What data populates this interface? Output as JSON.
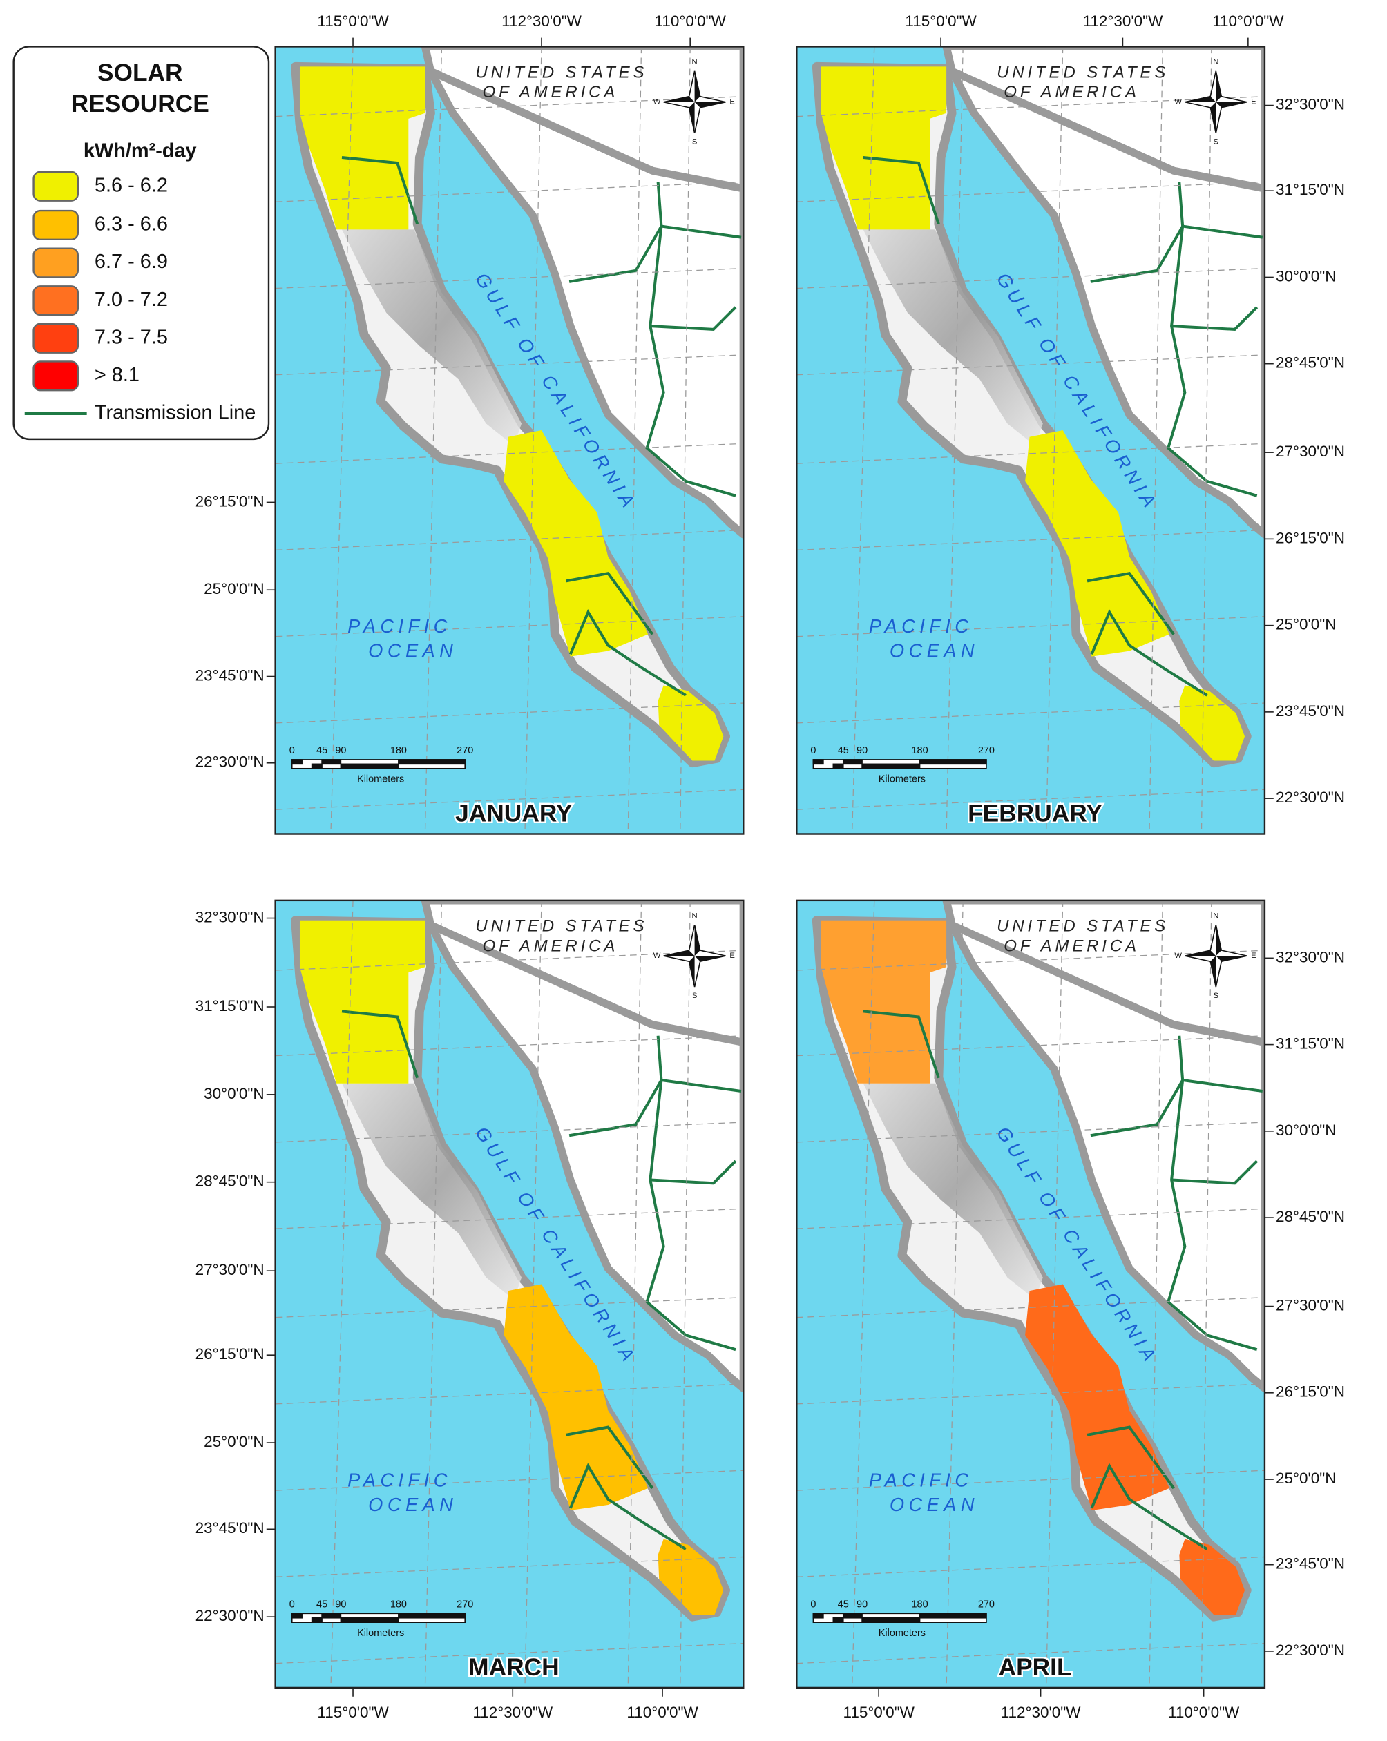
{
  "legend": {
    "title": [
      "SOLAR",
      "RESOURCE"
    ],
    "unit": "kWh/m²-day",
    "items": [
      {
        "label": "5.6 - 6.2",
        "color": "#f0f000"
      },
      {
        "label": "6.3 - 6.6",
        "color": "#ffc000"
      },
      {
        "label": "6.7 - 6.9",
        "color": "#ffa020"
      },
      {
        "label": "7.0 - 7.2",
        "color": "#ff7020"
      },
      {
        "label": "7.3 - 7.5",
        "color": "#ff4010"
      },
      {
        "label": ">  8.1",
        "color": "#ff0000"
      }
    ],
    "line": {
      "label": "Transmission Line",
      "color": "#1f7a45"
    }
  },
  "map_labels": {
    "country": [
      "UNITED STATES",
      "OF AMERICA"
    ],
    "gulf": "GULF OF CALIFORNIA",
    "ocean": [
      "PACIFIC",
      "OCEAN"
    ],
    "compass": [
      "N",
      "S",
      "E",
      "W"
    ]
  },
  "scale_bar": {
    "ticks": [
      "0",
      "45",
      "90",
      "180",
      "270"
    ],
    "unit": "Kilometers"
  },
  "panels": [
    {
      "month": "JANUARY",
      "longitudes": [
        "115°0'0\"W",
        "112°30'0\"W",
        "110°0'0\"W"
      ],
      "latitudes": [
        "26°15'0\"N",
        "25°0'0\"N",
        "23°45'0\"N",
        "22°30'0\"N"
      ],
      "colors": {
        "north": "#f0f000",
        "south": "#f0f000",
        "cape": "#f0f000"
      }
    },
    {
      "month": "FEBRUARY",
      "longitudes": [
        "115°0'0\"W",
        "112°30'0\"W",
        "110°0'0\"W"
      ],
      "latitudes": [
        "32°30'0\"N",
        "31°15'0\"N",
        "30°0'0\"N",
        "28°45'0\"N",
        "27°30'0\"N",
        "26°15'0\"N",
        "25°0'0\"N",
        "23°45'0\"N",
        "22°30'0\"N"
      ],
      "colors": {
        "north": "#f0f000",
        "south": "#f0f000",
        "cape": "#f0f000"
      }
    },
    {
      "month": "MARCH",
      "longitudes": [
        "115°0'0\"W",
        "112°30'0\"W",
        "110°0'0\"W"
      ],
      "latitudes": [
        "32°30'0\"N",
        "31°15'0\"N",
        "30°0'0\"N",
        "28°45'0\"N",
        "27°30'0\"N",
        "26°15'0\"N",
        "25°0'0\"N",
        "23°45'0\"N",
        "22°30'0\"N"
      ],
      "colors": {
        "north": "#f0f000",
        "south": "#ffc000",
        "cape": "#ffc000"
      }
    },
    {
      "month": "APRIL",
      "longitudes": [
        "115°0'0\"W",
        "112°30'0\"W",
        "110°0'0\"W"
      ],
      "latitudes": [
        "32°30'0\"N",
        "31°15'0\"N",
        "30°0'0\"N",
        "28°45'0\"N",
        "27°30'0\"N",
        "26°15'0\"N",
        "25°0'0\"N",
        "23°45'0\"N",
        "22°30'0\"N"
      ],
      "colors": {
        "north": "#ffa030",
        "south": "#ff6a1a",
        "cape": "#ff6a1a"
      }
    }
  ]
}
